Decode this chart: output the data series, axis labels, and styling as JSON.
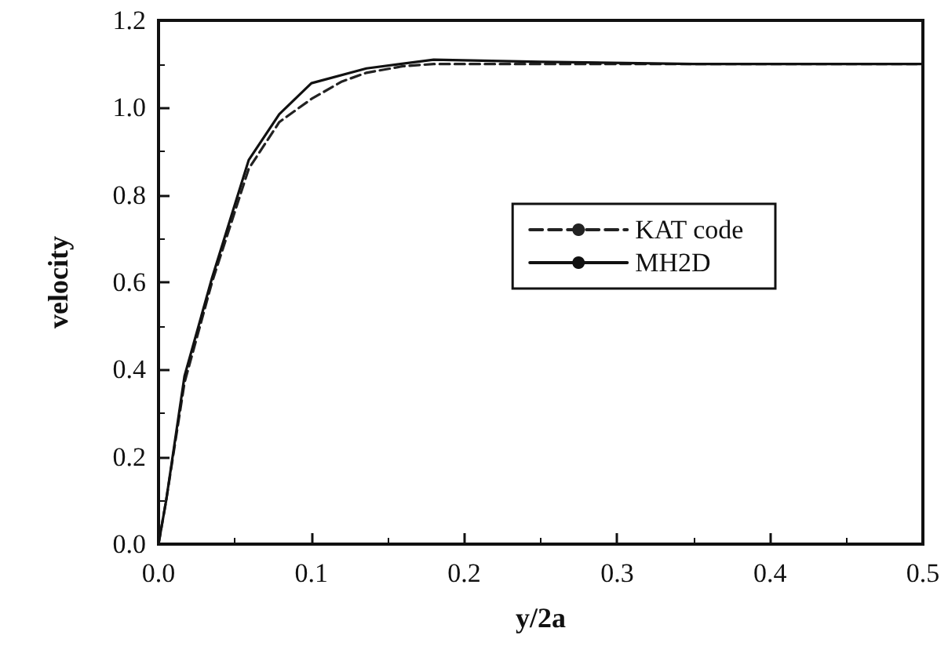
{
  "chart_data": {
    "type": "line",
    "xlabel": "y/2a",
    "ylabel": "velocity",
    "xlim": [
      0,
      0.5
    ],
    "xticks": [
      {
        "value": 0,
        "label": "0.0"
      },
      0.1,
      0.2,
      0.3,
      0.4,
      0.5
    ],
    "ylim": [
      0,
      1.2
    ],
    "yticks": [
      {
        "value": 0,
        "label": "0.0"
      },
      0.2,
      0.4,
      0.6,
      0.8,
      {
        "value": 1,
        "label": "1.0"
      },
      1.2
    ],
    "grid": false,
    "legend": "right",
    "marker": "none",
    "series": [
      {
        "name": "KAT code",
        "color": "#222222",
        "line_style": "dashed",
        "x": [
          0,
          0.005,
          0.017,
          0.035,
          0.059,
          0.079,
          0.1,
          0.12,
          0.136,
          0.16,
          0.18,
          0.25,
          0.35,
          0.5
        ],
        "values": [
          0,
          0.1,
          0.37,
          0.6,
          0.86,
          0.967,
          1.02,
          1.06,
          1.08,
          1.095,
          1.1,
          1.1,
          1.1,
          1.1
        ]
      },
      {
        "name": "MH2D",
        "color": "#111111",
        "line_style": "solid",
        "x": [
          0,
          0.005,
          0.017,
          0.035,
          0.059,
          0.079,
          0.1,
          0.136,
          0.18,
          0.25,
          0.35,
          0.5
        ],
        "values": [
          0,
          0.1,
          0.385,
          0.61,
          0.88,
          0.985,
          1.056,
          1.09,
          1.11,
          1.105,
          1.1,
          1.1
        ]
      }
    ]
  }
}
